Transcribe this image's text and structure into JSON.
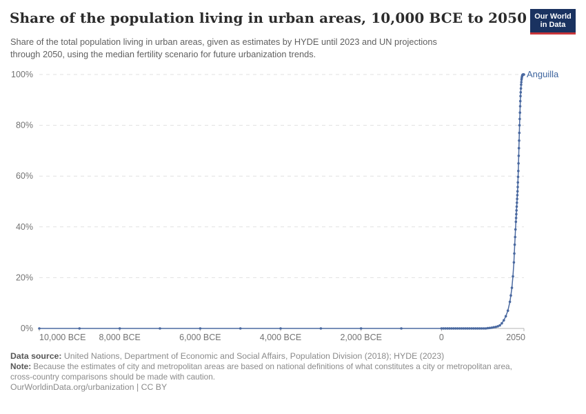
{
  "header": {
    "title": "Share of the population living in urban areas, 10,000 BCE to 2050",
    "subtitle_lines": [
      "Share of the total population living in urban areas, given as estimates by HYDE until 2023 and UN projections",
      "through 2050, using the median fertility scenario for future urbanization trends."
    ],
    "logo_line1": "Our World",
    "logo_line2": "in Data",
    "logo_colors": {
      "background": "#1a3260",
      "underline": "#c8353a"
    }
  },
  "footer": {
    "data_source_label": "Data source:",
    "data_source_text": " United Nations, Department of Economic and Social Affairs, Population Division (2018); HYDE (2023)",
    "note_label": "Note:",
    "note_lines": [
      " Because the estimates of city and metropolitan areas are based on national definitions of what constitutes a city or metropolitan area,",
      "cross-country comparisons should be made with caution."
    ],
    "citation": "OurWorldinData.org/urbanization | CC BY"
  },
  "chart_data": {
    "type": "line",
    "title": "Share of the population living in urban areas, 10,000 BCE to 2050",
    "xlabel": "",
    "ylabel": "",
    "x_domain": [
      -10000,
      2050
    ],
    "y_domain": [
      0,
      100
    ],
    "grid": "dashed-horizontal",
    "legend": "entity-label-right-of-line-end",
    "y_ticks": [
      {
        "value": 0,
        "label": "0%"
      },
      {
        "value": 20,
        "label": "20%"
      },
      {
        "value": 40,
        "label": "40%"
      },
      {
        "value": 60,
        "label": "60%"
      },
      {
        "value": 80,
        "label": "80%"
      },
      {
        "value": 100,
        "label": "100%"
      }
    ],
    "x_ticks": [
      {
        "value": -10000,
        "label": "10,000 BCE",
        "align": "start"
      },
      {
        "value": -8000,
        "label": "8,000 BCE"
      },
      {
        "value": -6000,
        "label": "6,000 BCE"
      },
      {
        "value": -4000,
        "label": "4,000 BCE"
      },
      {
        "value": -2000,
        "label": "2,000 BCE"
      },
      {
        "value": 0,
        "label": "0"
      },
      {
        "value": 2050,
        "label": "2050",
        "align": "end"
      }
    ],
    "series": [
      {
        "name": "Anguilla",
        "color": "#4a69a0",
        "label_color": "#3d649e",
        "points": [
          [
            -10000,
            0
          ],
          [
            -9000,
            0
          ],
          [
            -8000,
            0
          ],
          [
            -7000,
            0
          ],
          [
            -6000,
            0
          ],
          [
            -5000,
            0
          ],
          [
            -4000,
            0
          ],
          [
            -3000,
            0
          ],
          [
            -2000,
            0
          ],
          [
            -1000,
            0
          ],
          [
            0,
            0
          ],
          [
            50,
            0
          ],
          [
            100,
            0
          ],
          [
            150,
            0
          ],
          [
            200,
            0
          ],
          [
            250,
            0
          ],
          [
            300,
            0
          ],
          [
            350,
            0
          ],
          [
            400,
            0
          ],
          [
            450,
            0
          ],
          [
            500,
            0
          ],
          [
            550,
            0
          ],
          [
            600,
            0
          ],
          [
            650,
            0
          ],
          [
            700,
            0
          ],
          [
            750,
            0
          ],
          [
            800,
            0
          ],
          [
            850,
            0
          ],
          [
            900,
            0
          ],
          [
            950,
            0
          ],
          [
            1000,
            0
          ],
          [
            1050,
            0
          ],
          [
            1100,
            0
          ],
          [
            1150,
            0.1
          ],
          [
            1200,
            0.2
          ],
          [
            1250,
            0.3
          ],
          [
            1300,
            0.45
          ],
          [
            1350,
            0.6
          ],
          [
            1400,
            0.85
          ],
          [
            1450,
            1.2
          ],
          [
            1500,
            2
          ],
          [
            1550,
            3.2
          ],
          [
            1600,
            4.8
          ],
          [
            1650,
            7
          ],
          [
            1700,
            10.5
          ],
          [
            1725,
            13
          ],
          [
            1750,
            16
          ],
          [
            1775,
            20.5
          ],
          [
            1800,
            26
          ],
          [
            1810,
            29.5
          ],
          [
            1820,
            33
          ],
          [
            1830,
            36
          ],
          [
            1840,
            39
          ],
          [
            1850,
            42
          ],
          [
            1855,
            43.5
          ],
          [
            1860,
            45
          ],
          [
            1865,
            46.5
          ],
          [
            1870,
            48
          ],
          [
            1875,
            49.5
          ],
          [
            1880,
            51
          ],
          [
            1885,
            52.5
          ],
          [
            1890,
            54
          ],
          [
            1895,
            55.7
          ],
          [
            1900,
            57.5
          ],
          [
            1905,
            59.7
          ],
          [
            1910,
            62
          ],
          [
            1915,
            65
          ],
          [
            1920,
            68
          ],
          [
            1925,
            71
          ],
          [
            1930,
            74
          ],
          [
            1935,
            77
          ],
          [
            1940,
            80
          ],
          [
            1945,
            82.5
          ],
          [
            1950,
            85
          ],
          [
            1955,
            87.5
          ],
          [
            1960,
            89.5
          ],
          [
            1965,
            91.5
          ],
          [
            1970,
            93
          ],
          [
            1975,
            94.5
          ],
          [
            1980,
            96
          ],
          [
            1985,
            97
          ],
          [
            1990,
            98
          ],
          [
            1995,
            98.6
          ],
          [
            2000,
            99.1
          ],
          [
            2005,
            99.4
          ],
          [
            2010,
            99.7
          ],
          [
            2015,
            99.85
          ],
          [
            2020,
            99.95
          ],
          [
            2025,
            100
          ],
          [
            2030,
            100
          ],
          [
            2035,
            100
          ],
          [
            2040,
            100
          ],
          [
            2045,
            100
          ],
          [
            2050,
            100
          ]
        ]
      }
    ],
    "style": {
      "gridline_color": "#e0e0e0",
      "axis_color": "#b3b3b3",
      "tick_label_color": "#737373"
    }
  }
}
